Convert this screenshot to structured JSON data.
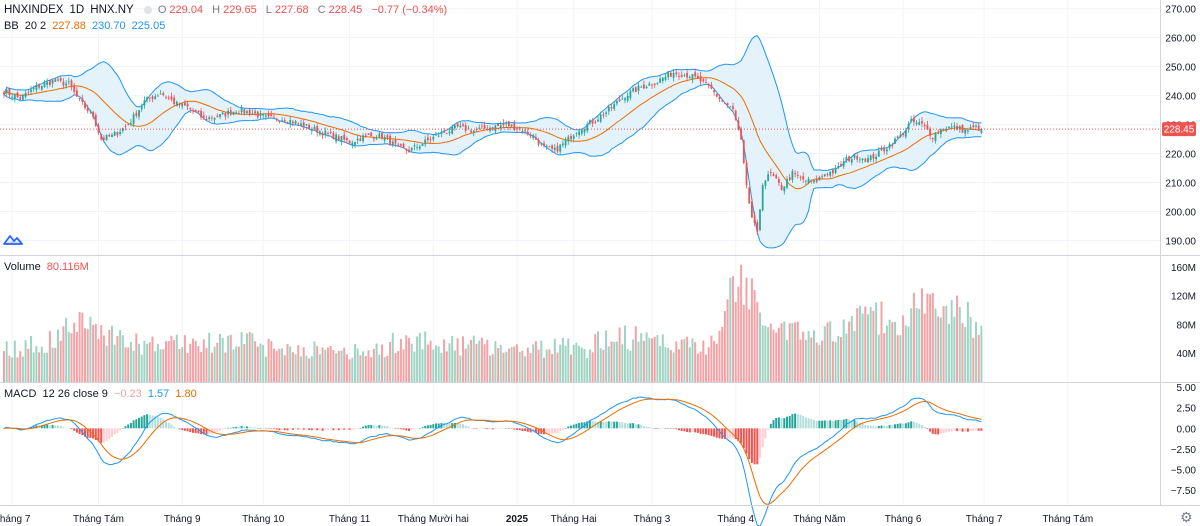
{
  "header": {
    "symbol": "HNXINDEX",
    "interval": "1D",
    "exchange": "HNX.NY",
    "ohlc": [
      {
        "k": "O",
        "v": "229.04"
      },
      {
        "k": "H",
        "v": "229.65"
      },
      {
        "k": "L",
        "v": "227.68"
      },
      {
        "k": "C",
        "v": "228.45"
      }
    ],
    "change": "−0.77 (−0.34%)",
    "bb_label": "BB",
    "bb_params": "20 2",
    "bb_mid": "227.88",
    "bb_upper": "230.70",
    "bb_lower": "225.05",
    "volume_label": "Volume",
    "volume_value": "80.116M",
    "macd_label": "MACD",
    "macd_params": "12 26 close 9",
    "macd_hist": "−0.23",
    "macd_line": "1.57",
    "macd_signal": "1.80"
  },
  "colors": {
    "up": "#26a69a",
    "down": "#ef5350",
    "volUp": "#9fd4c4",
    "volDown": "#f3a3a6",
    "bbMid": "#ef6c00",
    "bbBand": "#2196f3",
    "bbFill": "#dff0fb",
    "macdLine": "#2196f3",
    "signalLine": "#ef6c00",
    "grid": "#f0f3fa",
    "axisText": "#131722",
    "priceTag": "#ef5350"
  },
  "chart_data": {
    "type": "candlestick",
    "title": "HNXINDEX 1D HNX.NY",
    "last_price": 228.45,
    "last_price_label": "228.45",
    "price_axis": {
      "ticks": [
        190,
        200,
        210,
        220,
        230,
        240,
        250,
        260,
        270
      ],
      "labels": [
        "190.00",
        "200.00",
        "210.00",
        "220.00",
        "230.00",
        "240.00",
        "250.00",
        "260.00",
        "270.00"
      ],
      "range": [
        185,
        273
      ]
    },
    "volume_axis": {
      "ticks": [
        40,
        80,
        120,
        160
      ],
      "labels": [
        "40M",
        "80M",
        "120M",
        "160M"
      ],
      "range": [
        0,
        175
      ]
    },
    "macd_axis": {
      "ticks": [
        5,
        2.5,
        0,
        -2.5,
        -5,
        -7.5
      ],
      "labels": [
        "5.00",
        "2.50",
        "0.00",
        "−2.50",
        "−5.00",
        "−7.50"
      ],
      "range": [
        -9.3,
        5.5
      ]
    },
    "x_labels": [
      {
        "label": "Tháng 7",
        "day": 3
      },
      {
        "label": "Tháng Tám",
        "day": 35
      },
      {
        "label": "Tháng 9",
        "day": 66
      },
      {
        "label": "Tháng 10",
        "day": 96
      },
      {
        "label": "Tháng 11",
        "day": 128
      },
      {
        "label": "Tháng Mười hai",
        "day": 159
      },
      {
        "label": "2025",
        "day": 190
      },
      {
        "label": "Tháng Hai",
        "day": 211
      },
      {
        "label": "Tháng 3",
        "day": 240
      },
      {
        "label": "Tháng 4",
        "day": 271
      },
      {
        "label": "Tháng Năm",
        "day": 302
      },
      {
        "label": "Tháng 6",
        "day": 333
      },
      {
        "label": "Tháng 7",
        "day": 363
      },
      {
        "label": "Tháng Tám",
        "day": 394
      }
    ],
    "close_keypoints": [
      [
        0,
        241.5
      ],
      [
        6,
        239
      ],
      [
        12,
        243
      ],
      [
        18,
        245
      ],
      [
        24,
        244
      ],
      [
        28,
        238
      ],
      [
        33,
        233
      ],
      [
        36,
        225
      ],
      [
        40,
        226
      ],
      [
        46,
        230
      ],
      [
        52,
        238
      ],
      [
        58,
        241
      ],
      [
        64,
        237
      ],
      [
        68,
        236
      ],
      [
        74,
        232
      ],
      [
        80,
        233
      ],
      [
        86,
        235
      ],
      [
        92,
        234
      ],
      [
        98,
        232
      ],
      [
        104,
        232
      ],
      [
        110,
        230
      ],
      [
        116,
        228
      ],
      [
        122,
        226
      ],
      [
        128,
        224
      ],
      [
        134,
        226
      ],
      [
        140,
        226
      ],
      [
        146,
        222
      ],
      [
        150,
        221
      ],
      [
        156,
        224
      ],
      [
        162,
        227
      ],
      [
        168,
        229
      ],
      [
        174,
        228
      ],
      [
        180,
        229
      ],
      [
        186,
        230
      ],
      [
        190,
        229
      ],
      [
        196,
        226
      ],
      [
        200,
        222
      ],
      [
        204,
        221
      ],
      [
        208,
        224
      ],
      [
        212,
        228
      ],
      [
        218,
        231
      ],
      [
        224,
        235
      ],
      [
        230,
        240
      ],
      [
        236,
        243
      ],
      [
        242,
        245
      ],
      [
        248,
        248
      ],
      [
        254,
        247
      ],
      [
        258,
        245
      ],
      [
        262,
        242
      ],
      [
        266,
        238
      ],
      [
        270,
        235
      ],
      [
        273,
        224
      ],
      [
        275,
        208
      ],
      [
        277,
        198
      ],
      [
        279,
        192
      ],
      [
        281,
        210
      ],
      [
        284,
        213
      ],
      [
        288,
        208
      ],
      [
        292,
        213
      ],
      [
        296,
        211
      ],
      [
        300,
        210
      ],
      [
        304,
        213
      ],
      [
        308,
        214
      ],
      [
        312,
        218
      ],
      [
        316,
        219
      ],
      [
        320,
        218
      ],
      [
        324,
        220
      ],
      [
        328,
        223
      ],
      [
        332,
        226
      ],
      [
        336,
        231
      ],
      [
        340,
        230
      ],
      [
        344,
        226
      ],
      [
        348,
        229
      ],
      [
        352,
        229
      ],
      [
        356,
        228
      ],
      [
        360,
        229
      ],
      [
        362,
        228.45
      ]
    ],
    "volume_keypoints": [
      [
        0,
        45
      ],
      [
        10,
        50
      ],
      [
        20,
        60
      ],
      [
        25,
        85
      ],
      [
        35,
        75
      ],
      [
        45,
        55
      ],
      [
        55,
        50
      ],
      [
        65,
        55
      ],
      [
        75,
        52
      ],
      [
        85,
        60
      ],
      [
        95,
        50
      ],
      [
        105,
        48
      ],
      [
        115,
        45
      ],
      [
        125,
        42
      ],
      [
        135,
        40
      ],
      [
        145,
        55
      ],
      [
        155,
        60
      ],
      [
        165,
        50
      ],
      [
        175,
        52
      ],
      [
        185,
        50
      ],
      [
        195,
        45
      ],
      [
        205,
        48
      ],
      [
        215,
        45
      ],
      [
        225,
        65
      ],
      [
        235,
        60
      ],
      [
        245,
        55
      ],
      [
        255,
        50
      ],
      [
        262,
        55
      ],
      [
        266,
        70
      ],
      [
        268,
        120
      ],
      [
        272,
        140
      ],
      [
        276,
        120
      ],
      [
        280,
        110
      ],
      [
        286,
        80
      ],
      [
        292,
        70
      ],
      [
        300,
        60
      ],
      [
        310,
        70
      ],
      [
        320,
        90
      ],
      [
        330,
        85
      ],
      [
        336,
        100
      ],
      [
        340,
        110
      ],
      [
        346,
        95
      ],
      [
        350,
        100
      ],
      [
        356,
        90
      ],
      [
        362,
        80
      ]
    ],
    "bollinger": {
      "period": 20,
      "stddev": 2
    },
    "macd": {
      "fast": 12,
      "slow": 26,
      "signal": 9
    }
  }
}
